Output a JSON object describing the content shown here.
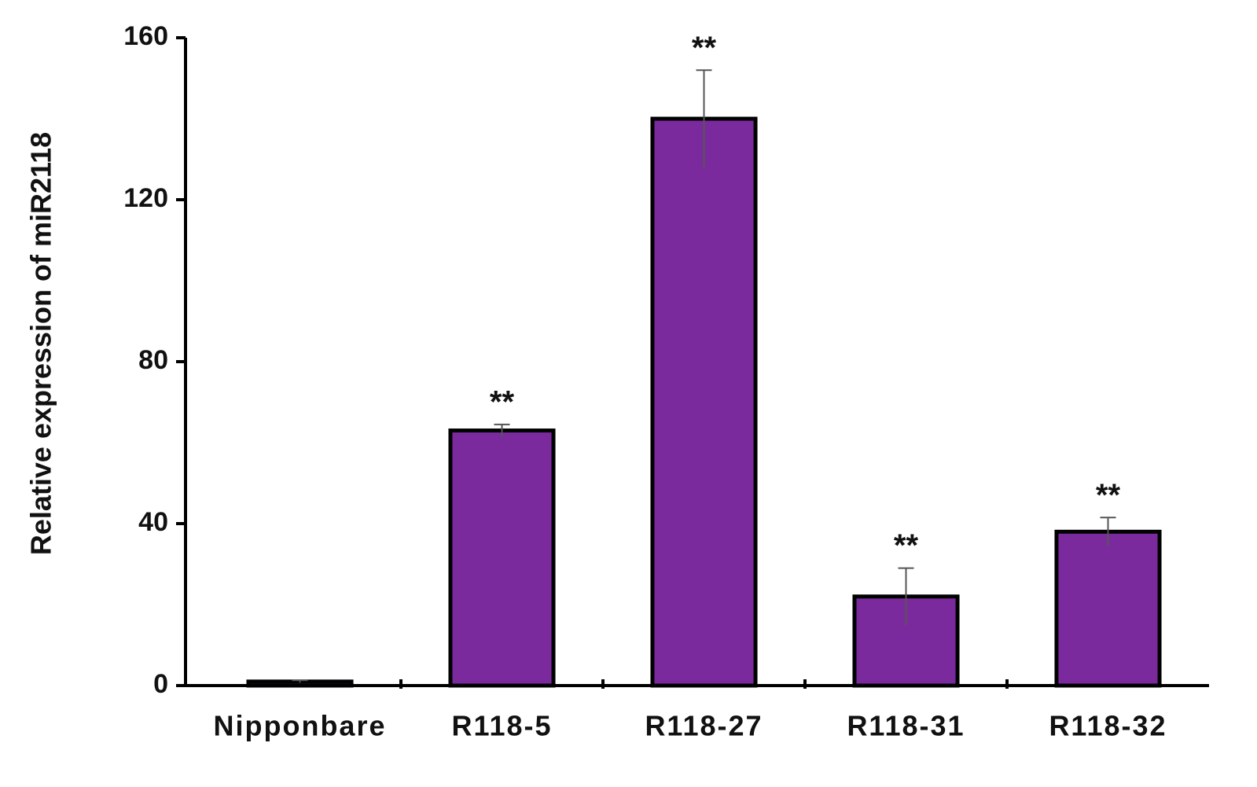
{
  "chart_data": {
    "type": "bar",
    "y_axis_label": "Relative expression of miR2118",
    "categories": [
      "Nipponbare",
      "R118-5",
      "R118-27",
      "R118-31",
      "R118-32"
    ],
    "values": [
      1,
      63,
      140,
      22,
      38
    ],
    "errors": [
      0.3,
      1.5,
      12,
      7,
      3.5
    ],
    "annotations": [
      null,
      "**",
      "**",
      "**",
      "**"
    ],
    "color": "#7b2a9e",
    "ylim": [
      0,
      160
    ],
    "yticks": [
      0,
      40,
      80,
      120,
      160
    ],
    "grid": false
  }
}
